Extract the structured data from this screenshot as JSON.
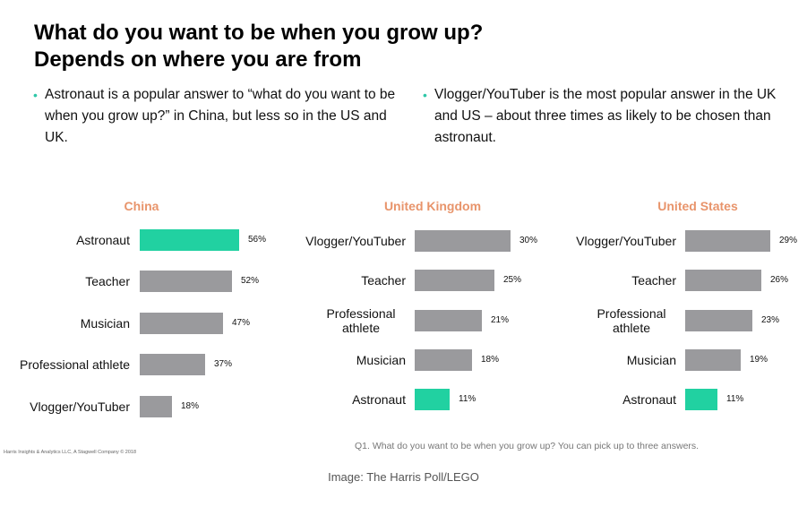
{
  "title": "What do you want to be when you grow up? Depends on where you are from",
  "bullets": [
    "Astronaut is a popular answer to “what do you want to be when you grow up?” in China, but less so in the US and UK.",
    "Vlogger/YouTuber is the most popular answer in the UK and US – about three times as likely to be chosen than astronaut."
  ],
  "colors": {
    "highlight": "#21d1a1",
    "bar": "#9a9a9d",
    "chart_title": "#e8946b",
    "bullet_dot": "#2fc7a8"
  },
  "chart_data": [
    {
      "type": "bar",
      "orientation": "horizontal",
      "title": "China",
      "categories": [
        "Astronaut",
        "Teacher",
        "Musician",
        "Professional athlete",
        "Vlogger/YouTuber"
      ],
      "values": [
        56,
        52,
        47,
        37,
        18
      ],
      "value_labels": [
        "56%",
        "52%",
        "47%",
        "37%",
        "18%"
      ],
      "highlight": "Astronaut",
      "xlim": [
        0,
        56
      ]
    },
    {
      "type": "bar",
      "orientation": "horizontal",
      "title": "United Kingdom",
      "categories": [
        "Vlogger/YouTuber",
        "Teacher",
        "Professional athlete",
        "Musician",
        "Astronaut"
      ],
      "values": [
        30,
        25,
        21,
        18,
        11
      ],
      "value_labels": [
        "30%",
        "25%",
        "21%",
        "18%",
        "11%"
      ],
      "highlight": "Astronaut",
      "xlim": [
        0,
        30
      ]
    },
    {
      "type": "bar",
      "orientation": "horizontal",
      "title": "United States",
      "categories": [
        "Vlogger/YouTuber",
        "Teacher",
        "Professional athlete",
        "Musician",
        "Astronaut"
      ],
      "values": [
        29,
        26,
        23,
        19,
        11
      ],
      "value_labels": [
        "29%",
        "26%",
        "23%",
        "19%",
        "11%"
      ],
      "highlight": "Astronaut",
      "xlim": [
        0,
        29
      ]
    }
  ],
  "footer": {
    "credit": "Harris Insights & Analytics LLC, A Stagwell Company © 2018",
    "question": "Q1. What do you want to be when you grow up? You can pick up to three answers."
  },
  "caption": "Image: The Harris Poll/LEGO"
}
